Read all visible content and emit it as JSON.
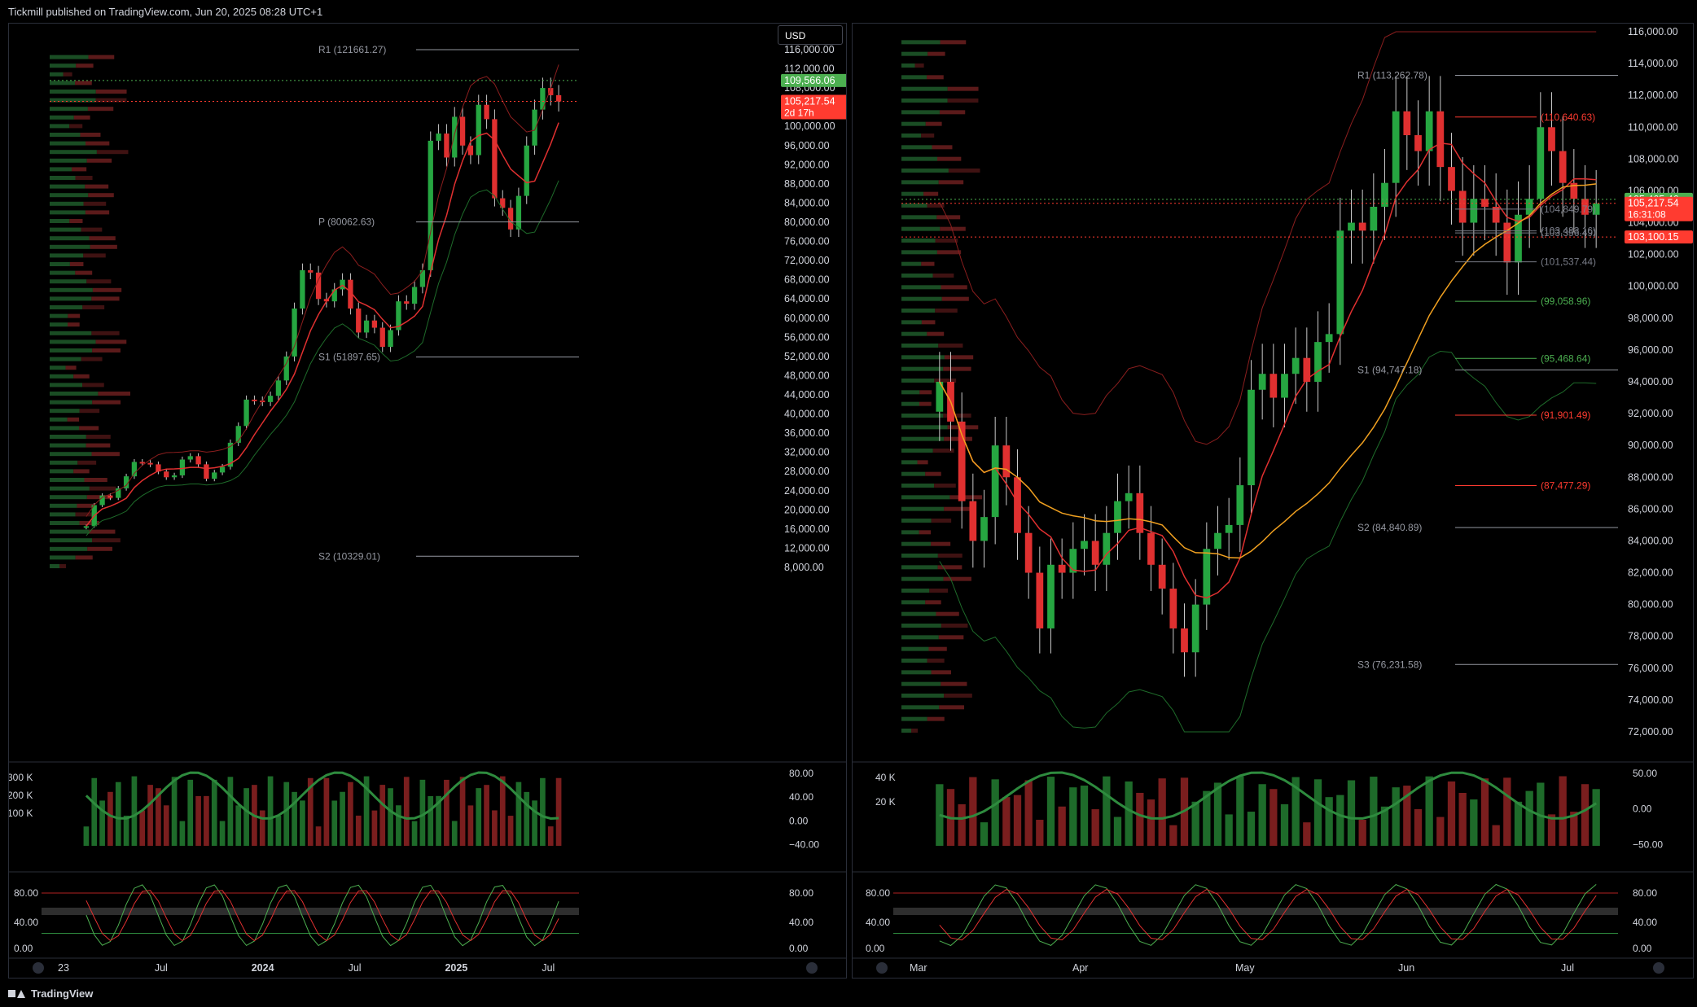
{
  "header": {
    "publisher": "Tickmill published on TradingView.com, Jun 20, 2025 08:28 UTC+1"
  },
  "footer": {
    "brand": "TradingView"
  },
  "colors": {
    "up": "#26a641",
    "down": "#e03030",
    "green_level": "#4caf50",
    "red_level": "#ff3b30",
    "grid": "#1e222d",
    "axis_text": "#d1d4dc"
  },
  "currency_button": "USD",
  "chart_data": [
    {
      "id": "left",
      "type": "candlestick",
      "timeframe_axis": [
        "23",
        "Jul",
        "2024",
        "Jul",
        "2025",
        "Jul"
      ],
      "y_ticks": [
        "116,000.00",
        "112,000.00",
        "108,000.00",
        "104,000.00",
        "100,000.00",
        "96,000.00",
        "92,000.00",
        "88,000.00",
        "84,000.00",
        "80,000.00",
        "76,000.00",
        "72,000.00",
        "68,000.00",
        "64,000.00",
        "60,000.00",
        "56,000.00",
        "52,000.00",
        "48,000.00",
        "44,000.00",
        "40,000.00",
        "36,000.00",
        "32,000.00",
        "28,000.00",
        "24,000.00",
        "20,000.00",
        "16,000.00",
        "12,000.00",
        "8,000.00"
      ],
      "ylim": [
        8000,
        116000
      ],
      "pivot_labels": [
        "R1 (121661.27)",
        "P (80062.63)",
        "S1 (51897.65)",
        "S2 (10329.01)"
      ],
      "price_badges": [
        {
          "value": "109,566.06",
          "color": "#4caf50"
        },
        {
          "value": "105,217.54",
          "sub": "2d 17h",
          "color": "#ff3b30"
        }
      ],
      "closes": [
        16600,
        21000,
        23000,
        22500,
        24500,
        27000,
        30000,
        29800,
        29500,
        28000,
        26800,
        27200,
        30500,
        31200,
        29500,
        26500,
        27800,
        29000,
        34000,
        37500,
        43000,
        42800,
        42500,
        43800,
        47000,
        52000,
        62000,
        70000,
        69500,
        64000,
        63500,
        66000,
        68000,
        62000,
        57000,
        59500,
        58000,
        54000,
        57500,
        63500,
        63000,
        66500,
        70000,
        97000,
        98500,
        93500,
        102000,
        96000,
        94000,
        104500,
        101500,
        85000,
        83000,
        78500,
        85500,
        96000,
        103500,
        108000,
        106500,
        105200
      ],
      "volume_ticks": [
        "300 K",
        "200 K",
        "100 K"
      ],
      "osc1_ticks": [
        "80.00",
        "40.00",
        "0.00",
        "−40.00"
      ],
      "osc2_ticks": [
        "80.00",
        "40.00",
        "0.00"
      ]
    },
    {
      "id": "right",
      "type": "candlestick",
      "timeframe_axis": [
        "Mar",
        "Apr",
        "May",
        "Jun",
        "Jul"
      ],
      "y_ticks": [
        "116,000.00",
        "114,000.00",
        "112,000.00",
        "110,000.00",
        "108,000.00",
        "106,000.00",
        "104,000.00",
        "102,000.00",
        "100,000.00",
        "98,000.00",
        "96,000.00",
        "94,000.00",
        "92,000.00",
        "90,000.00",
        "88,000.00",
        "86,000.00",
        "84,000.00",
        "82,000.00",
        "80,000.00",
        "78,000.00",
        "76,000.00",
        "74,000.00",
        "72,000.00"
      ],
      "ylim": [
        72000,
        116000
      ],
      "pivot_labels": [
        "R1 (113,262.78)",
        "S1 (94,747.18)",
        "S2 (84,840.89)",
        "S3 (76,231.58)"
      ],
      "level_labels": [
        {
          "text": "(110,640.63)",
          "color": "#ff3b30"
        },
        {
          "text": "(104,849.79)",
          "color": "#787b86"
        },
        {
          "text": "(103,356.49)",
          "color": "#787b86"
        },
        {
          "text": "(103,483.16)",
          "color": "#787b86"
        },
        {
          "text": "(101,537.44)",
          "color": "#787b86"
        },
        {
          "text": "(99,058.96)",
          "color": "#4caf50"
        },
        {
          "text": "(95,468.64)",
          "color": "#4caf50"
        },
        {
          "text": "(91,901.49)",
          "color": "#ff3b30"
        },
        {
          "text": "(87,477.29)",
          "color": "#ff3b30"
        }
      ],
      "price_badges": [
        {
          "value": "105,465.46",
          "color": "#4caf50"
        },
        {
          "value": "105,217.54",
          "sub": "16:31:08",
          "color": "#ff3b30"
        },
        {
          "value": "103,100.15",
          "color": "#ff3b30"
        }
      ],
      "closes": [
        94000,
        91500,
        86500,
        84000,
        85500,
        90000,
        88000,
        84500,
        82000,
        78500,
        82500,
        82000,
        83500,
        84000,
        82500,
        84500,
        86500,
        87000,
        84500,
        82500,
        81000,
        78500,
        77000,
        80000,
        83500,
        84500,
        85000,
        87500,
        93500,
        94500,
        93000,
        94500,
        95500,
        94000,
        96500,
        97000,
        103500,
        104000,
        103500,
        105000,
        106500,
        111000,
        109500,
        108500,
        111000,
        107500,
        106000,
        104000,
        105500,
        105000,
        104000,
        101500,
        104500,
        105500,
        110000,
        108500,
        106500,
        105500,
        104500,
        105200
      ],
      "volume_ticks": [
        "40 K",
        "20 K"
      ],
      "osc1_ticks": [
        "50.00",
        "0.00",
        "−50.00"
      ],
      "osc2_ticks": [
        "80.00",
        "40.00",
        "0.00"
      ]
    }
  ]
}
